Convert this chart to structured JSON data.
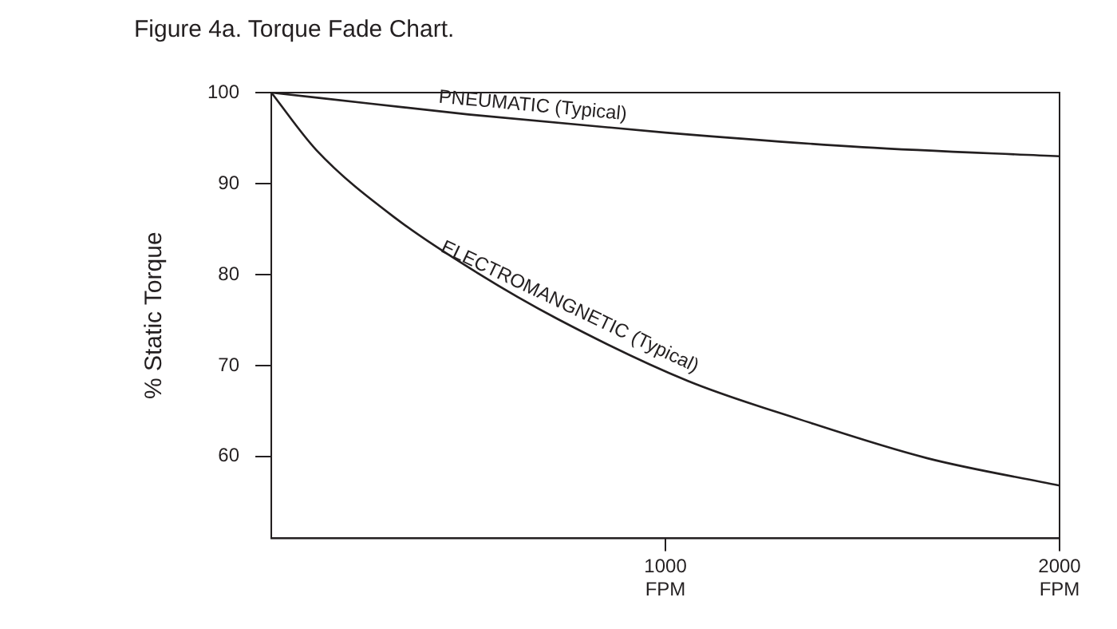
{
  "chart_data": {
    "type": "line",
    "title": "Figure 4a. Torque Fade Chart.",
    "ylabel": "% Static Torque",
    "xlim": [
      0,
      2000
    ],
    "xticks": [
      {
        "value": 1000,
        "label": "1000\nFPM"
      },
      {
        "value": 2000,
        "label": "2000\nFPM"
      }
    ],
    "ylim": [
      51,
      100
    ],
    "yticks": [
      60,
      70,
      80,
      90,
      100
    ],
    "grid": false,
    "legend": false,
    "marker": "none",
    "line_style": "solid",
    "series": [
      {
        "name": "PNEUMATIC (Typical)",
        "color": "#231f20",
        "x": [
          0,
          250,
          500,
          1000,
          1500,
          2000
        ],
        "values": [
          100,
          98.8,
          97.6,
          95.6,
          94,
          93
        ]
      },
      {
        "name": "ELECTROMANGNETIC (Typical)",
        "color": "#231f20",
        "x": [
          0,
          114,
          318,
          522,
          727,
          1057,
          1339,
          1665,
          2000
        ],
        "values": [
          100,
          93.7,
          86.1,
          80.2,
          75.1,
          68.3,
          64.1,
          59.8,
          56.8
        ]
      }
    ]
  }
}
